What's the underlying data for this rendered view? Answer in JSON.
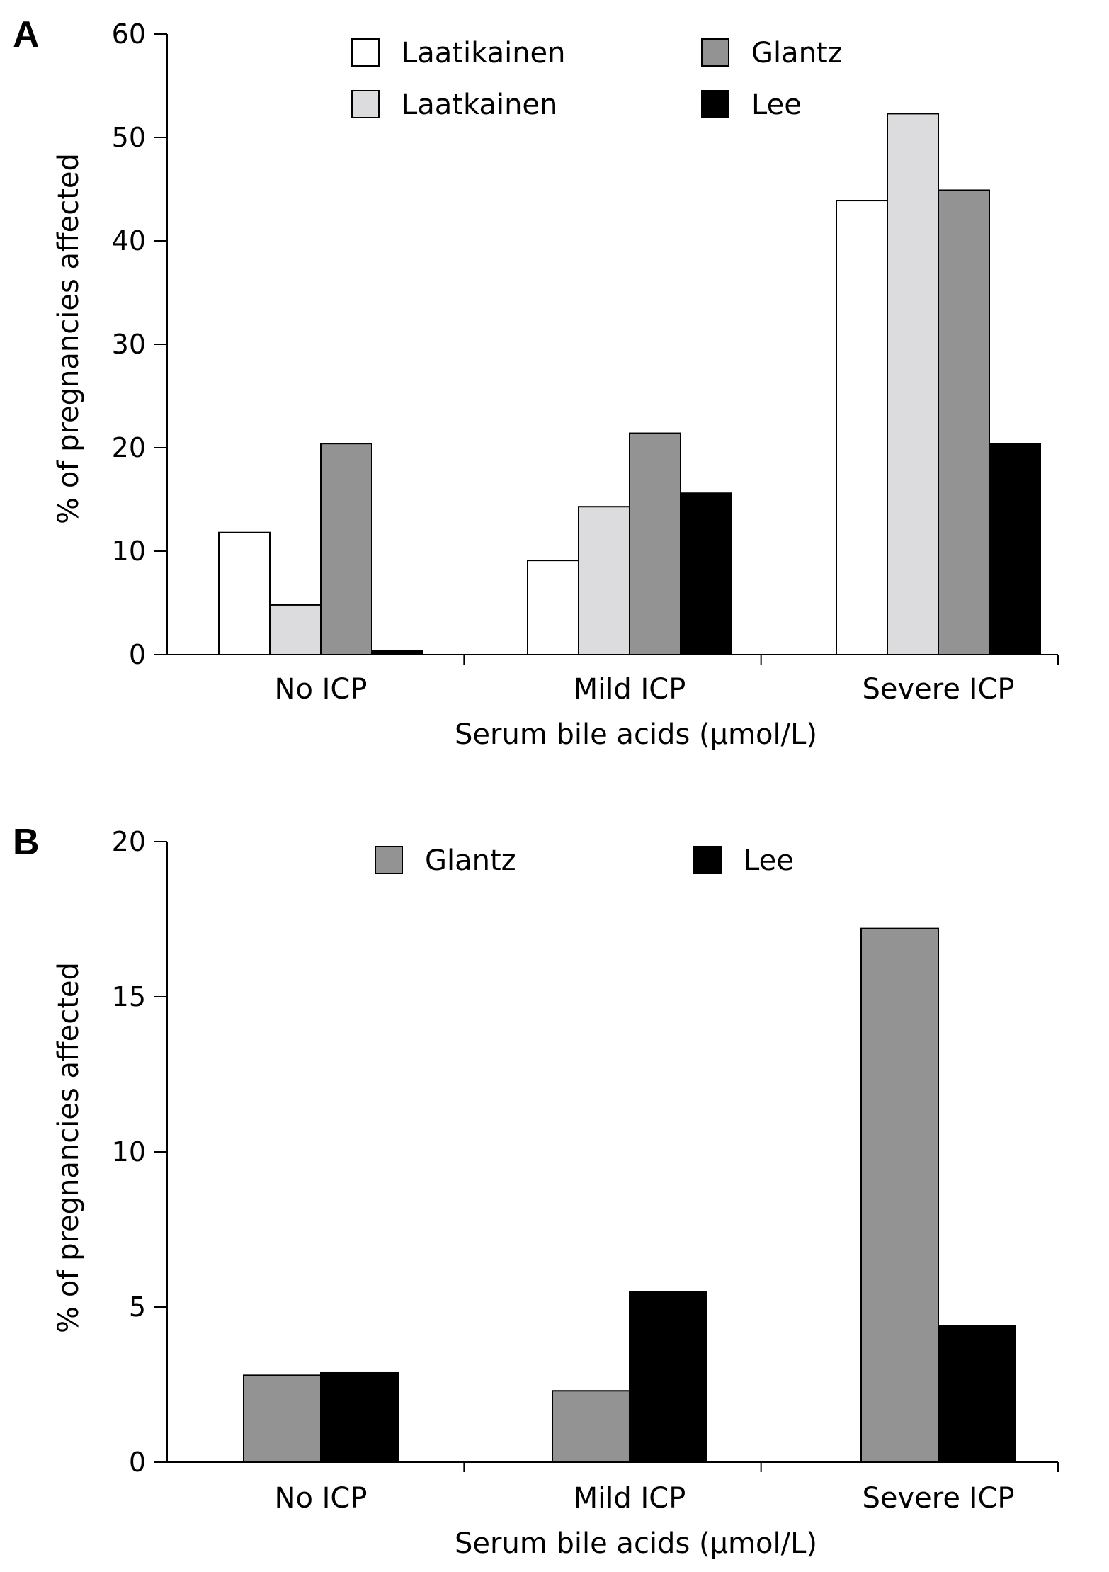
{
  "chart_data": [
    {
      "type": "bar",
      "panel_label": "A",
      "categories": [
        "No ICP",
        "Mild ICP",
        "Severe ICP"
      ],
      "series": [
        {
          "name": "Laatikainen",
          "values": [
            11.8,
            9.1,
            43.9
          ]
        },
        {
          "name": "Laatkainen",
          "values": [
            4.8,
            14.3,
            52.3
          ]
        },
        {
          "name": "Glantz",
          "values": [
            20.4,
            21.4,
            44.9
          ]
        },
        {
          "name": "Lee",
          "values": [
            0.4,
            15.6,
            20.4
          ]
        }
      ],
      "xlabel": "Serum bile acids (μmol/L)",
      "ylabel": "% of pregnancies affected",
      "ylim": [
        0,
        60
      ],
      "yticks": [
        "0",
        "10",
        "20",
        "30",
        "40",
        "50",
        "60"
      ],
      "grid": false,
      "legend_position": "top-center"
    },
    {
      "type": "bar",
      "panel_label": "B",
      "categories": [
        "No ICP",
        "Mild ICP",
        "Severe ICP"
      ],
      "series": [
        {
          "name": "Glantz",
          "values": [
            2.8,
            2.3,
            17.2
          ]
        },
        {
          "name": "Lee",
          "values": [
            2.9,
            5.5,
            4.4
          ]
        }
      ],
      "xlabel": "Serum bile acids (μmol/L)",
      "ylabel": "% of pregnancies affected",
      "ylim": [
        0,
        20
      ],
      "yticks": [
        "0",
        "5",
        "10",
        "15",
        "20"
      ],
      "grid": false,
      "legend_position": "top-center"
    }
  ],
  "colors": {
    "Laatikainen": "#ffffff",
    "Laatkainen": "#dcdcde",
    "Glantz": "#939393",
    "Lee": "#000000",
    "edge": "#000000"
  }
}
